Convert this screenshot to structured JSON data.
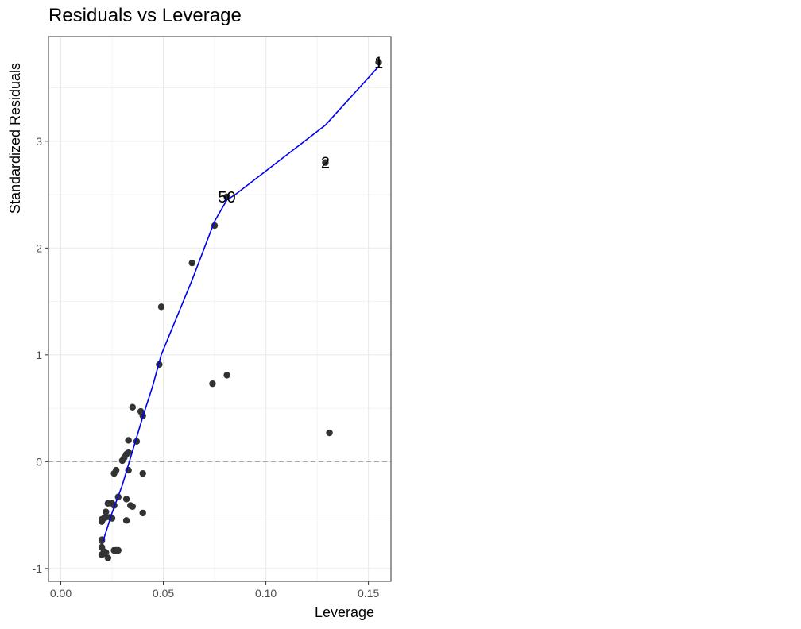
{
  "chart_data": {
    "type": "scatter",
    "title": "Residuals vs Leverage",
    "xlabel": "Leverage",
    "ylabel": "Standardized Residuals",
    "xlim": [
      -0.006,
      0.161
    ],
    "ylim": [
      -1.12,
      3.98
    ],
    "x_ticks": [
      0.0,
      0.05,
      0.1,
      0.15
    ],
    "x_tick_labels": [
      "0.00",
      "0.05",
      "0.10",
      "0.15"
    ],
    "y_ticks": [
      -1,
      0,
      1,
      2,
      3
    ],
    "y_tick_labels": [
      "-1",
      "0",
      "1",
      "2",
      "3"
    ],
    "grid": true,
    "reference_line": {
      "y": 0,
      "style": "dashed",
      "color": "#a6a6a6"
    },
    "colors": {
      "points": "#333333",
      "smooth": "#0000ee",
      "grid": "#ebebeb",
      "panel_border": "#333333"
    },
    "points": [
      {
        "x": 0.155,
        "y": 3.74
      },
      {
        "x": 0.129,
        "y": 2.8
      },
      {
        "x": 0.081,
        "y": 2.48
      },
      {
        "x": 0.075,
        "y": 2.21
      },
      {
        "x": 0.064,
        "y": 1.86
      },
      {
        "x": 0.049,
        "y": 1.45
      },
      {
        "x": 0.048,
        "y": 0.91
      },
      {
        "x": 0.081,
        "y": 0.81
      },
      {
        "x": 0.074,
        "y": 0.73
      },
      {
        "x": 0.035,
        "y": 0.51
      },
      {
        "x": 0.039,
        "y": 0.47
      },
      {
        "x": 0.04,
        "y": 0.43
      },
      {
        "x": 0.131,
        "y": 0.27
      },
      {
        "x": 0.033,
        "y": 0.2
      },
      {
        "x": 0.037,
        "y": 0.19
      },
      {
        "x": 0.033,
        "y": 0.09
      },
      {
        "x": 0.032,
        "y": 0.07
      },
      {
        "x": 0.031,
        "y": 0.04
      },
      {
        "x": 0.03,
        "y": 0.01
      },
      {
        "x": 0.027,
        "y": -0.08
      },
      {
        "x": 0.026,
        "y": -0.11
      },
      {
        "x": 0.033,
        "y": -0.08
      },
      {
        "x": 0.04,
        "y": -0.11
      },
      {
        "x": 0.028,
        "y": -0.33
      },
      {
        "x": 0.032,
        "y": -0.35
      },
      {
        "x": 0.023,
        "y": -0.39
      },
      {
        "x": 0.025,
        "y": -0.39
      },
      {
        "x": 0.026,
        "y": -0.41
      },
      {
        "x": 0.034,
        "y": -0.41
      },
      {
        "x": 0.035,
        "y": -0.42
      },
      {
        "x": 0.022,
        "y": -0.47
      },
      {
        "x": 0.04,
        "y": -0.48
      },
      {
        "x": 0.022,
        "y": -0.52
      },
      {
        "x": 0.024,
        "y": -0.52
      },
      {
        "x": 0.021,
        "y": -0.53
      },
      {
        "x": 0.02,
        "y": -0.54
      },
      {
        "x": 0.025,
        "y": -0.53
      },
      {
        "x": 0.032,
        "y": -0.55
      },
      {
        "x": 0.02,
        "y": -0.56
      },
      {
        "x": 0.02,
        "y": -0.73
      },
      {
        "x": 0.02,
        "y": -0.74
      },
      {
        "x": 0.02,
        "y": -0.8
      },
      {
        "x": 0.021,
        "y": -0.84
      },
      {
        "x": 0.021,
        "y": -0.86
      },
      {
        "x": 0.022,
        "y": -0.85
      },
      {
        "x": 0.026,
        "y": -0.83
      },
      {
        "x": 0.027,
        "y": -0.83
      },
      {
        "x": 0.028,
        "y": -0.83
      },
      {
        "x": 0.023,
        "y": -0.9
      },
      {
        "x": 0.02,
        "y": -0.87
      }
    ],
    "point_labels": [
      {
        "x": 0.155,
        "y": 3.74,
        "label": "1"
      },
      {
        "x": 0.129,
        "y": 2.8,
        "label": "2"
      },
      {
        "x": 0.081,
        "y": 2.48,
        "label": "50"
      }
    ],
    "smooth_line": {
      "x": [
        0.0205,
        0.025,
        0.03,
        0.035,
        0.04,
        0.045,
        0.049,
        0.064,
        0.075,
        0.081,
        0.085,
        0.129,
        0.155
      ],
      "y": [
        -0.75,
        -0.48,
        -0.22,
        0.1,
        0.42,
        0.72,
        1.0,
        1.7,
        2.25,
        2.45,
        2.5,
        3.15,
        3.7
      ]
    }
  }
}
